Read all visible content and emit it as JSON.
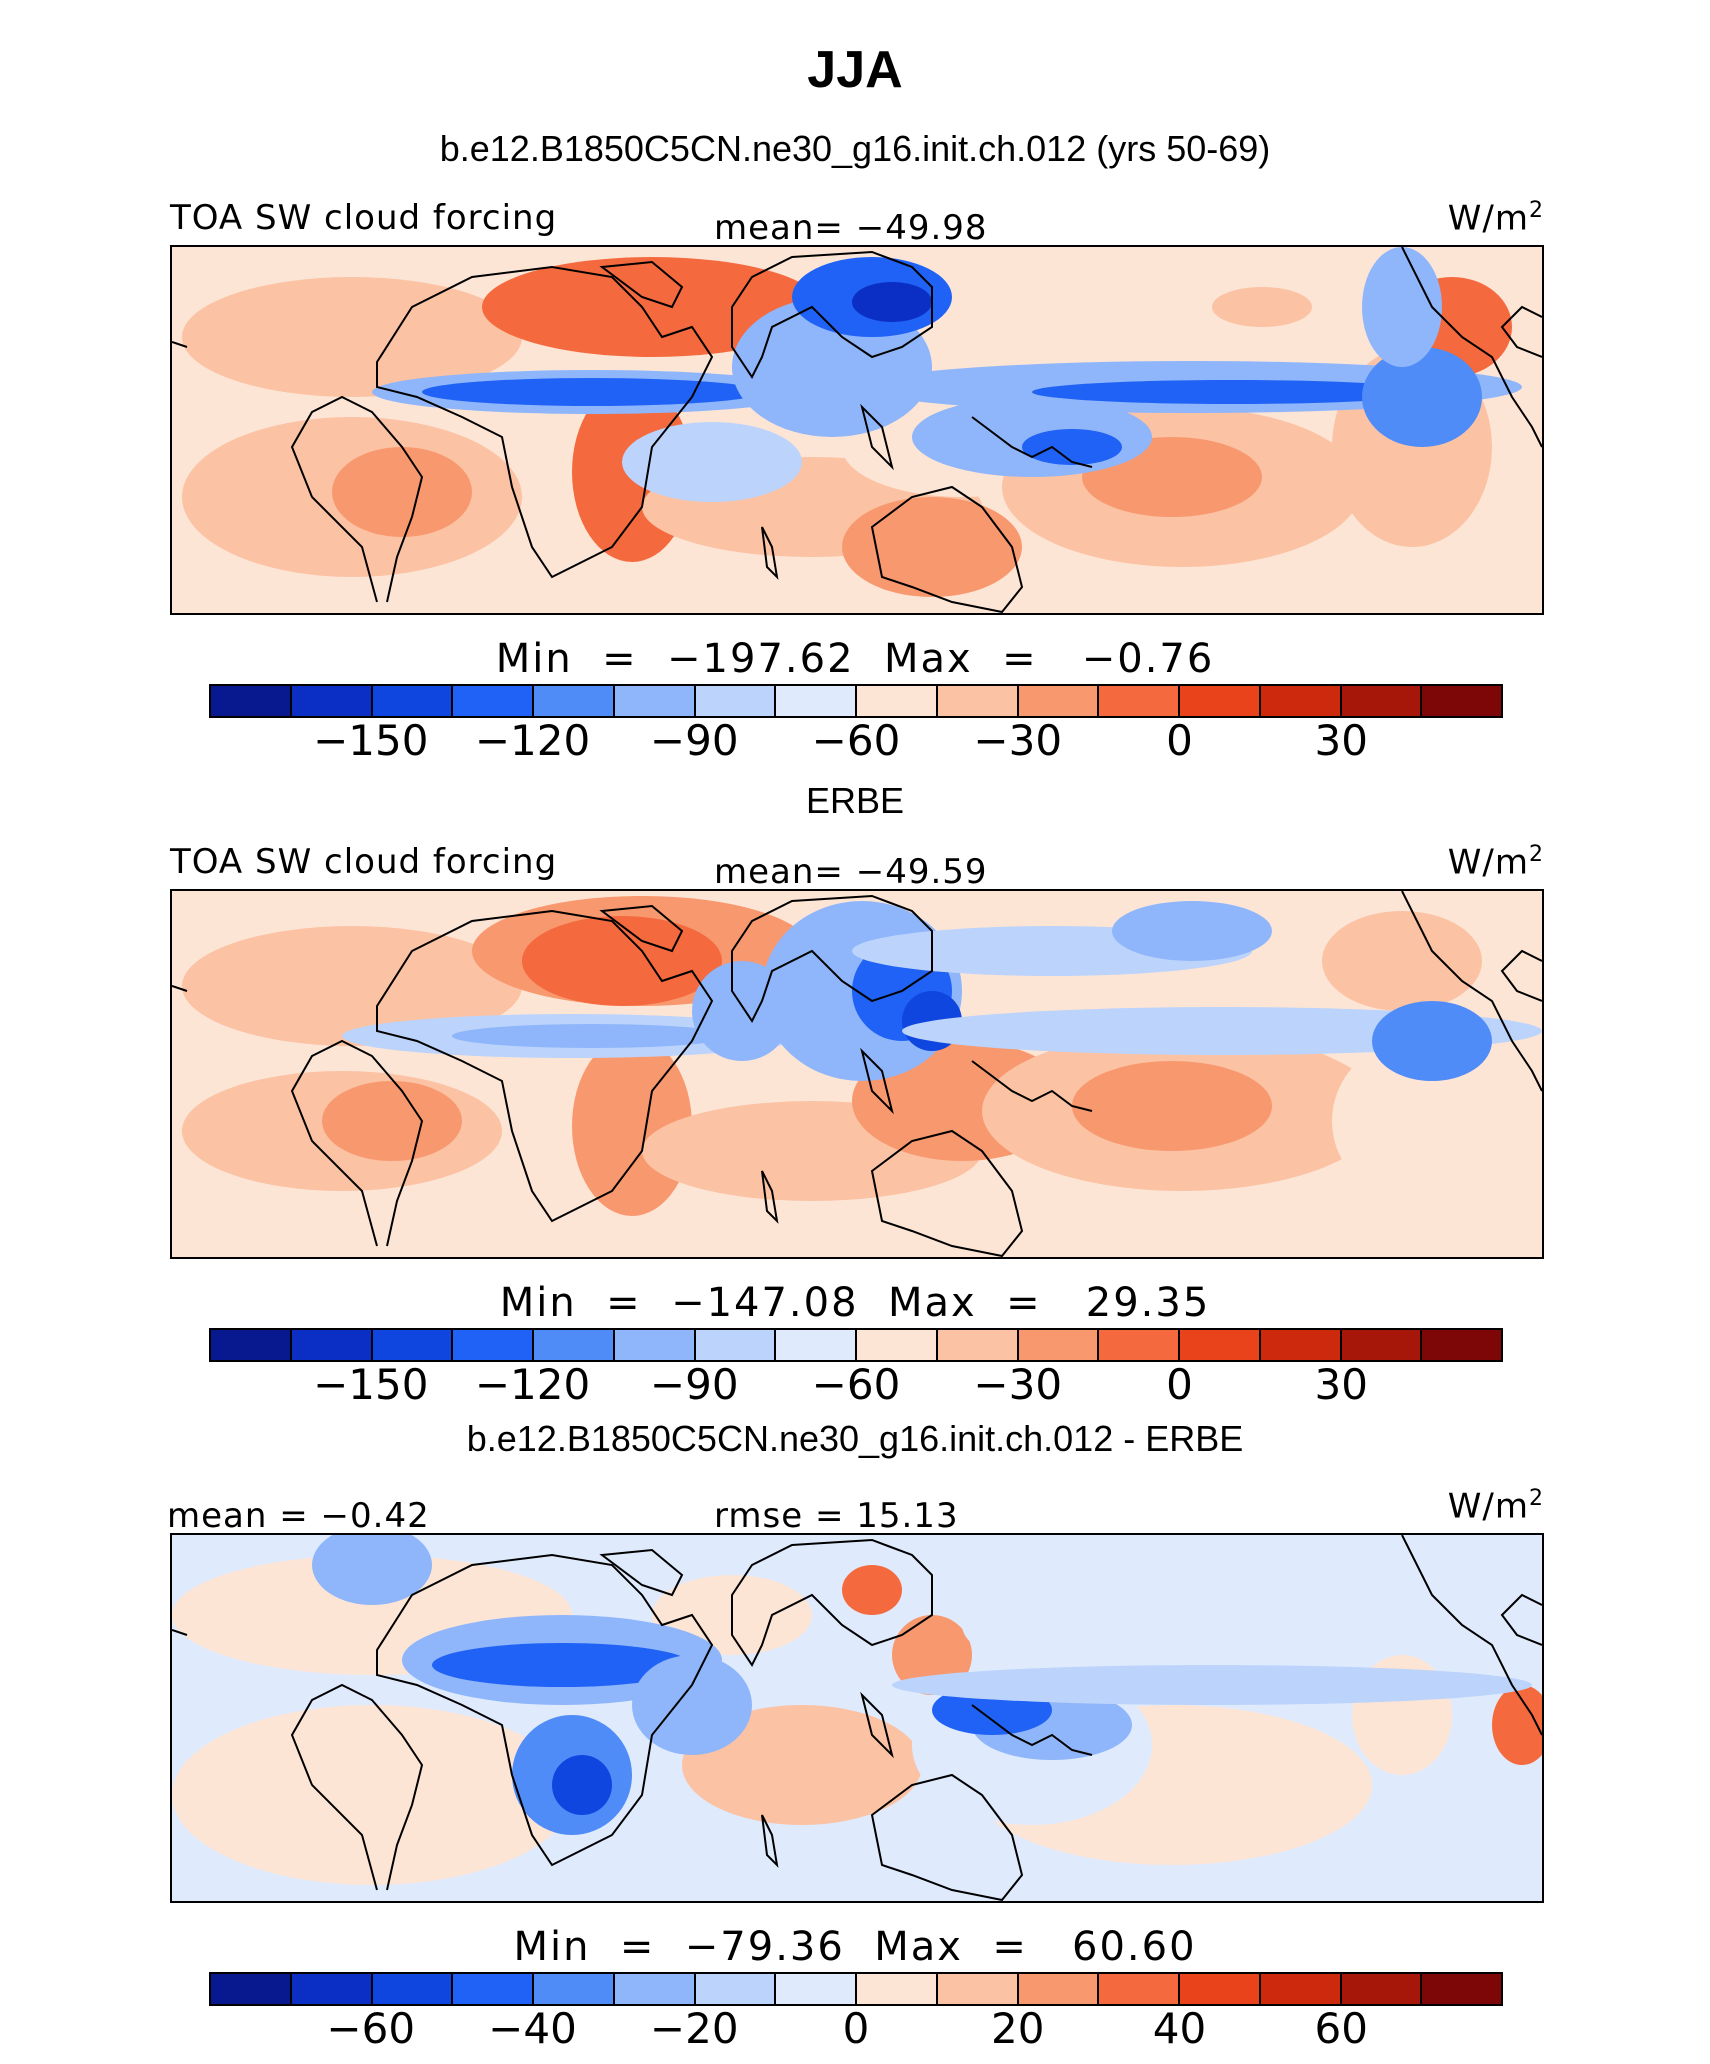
{
  "figure": {
    "title": "JJA",
    "colorbar_colors": [
      "#08188f",
      "#0b2fc4",
      "#0f46e0",
      "#1f62f5",
      "#4f8cf7",
      "#8fb6fa",
      "#bcd3fb",
      "#dfeafd",
      "#fde5d6",
      "#fbc2a3",
      "#f8986e",
      "#f46a3e",
      "#e8431b",
      "#cd2a0d",
      "#a6170a",
      "#7d0606"
    ],
    "coastline_color": "#000000"
  },
  "panels": [
    {
      "title": "b.e12.B1850C5CN.ne30_g16.init.ch.012 (yrs 50-69)",
      "left_label": "TOA SW cloud forcing",
      "center_label": "mean= −49.98",
      "units_label": "W/m",
      "units_sup": "2",
      "minmax_label": "Min  =  −197.62  Max  =   −0.76",
      "colorbar_ticks": [
        "−150",
        "−120",
        "−90",
        "−60",
        "−30",
        "0",
        "30"
      ],
      "field": "model"
    },
    {
      "title": "ERBE",
      "left_label": "TOA SW cloud forcing",
      "center_label": "mean= −49.59",
      "units_label": "W/m",
      "units_sup": "2",
      "minmax_label": "Min  =  −147.08  Max  =   29.35",
      "colorbar_ticks": [
        "−150",
        "−120",
        "−90",
        "−60",
        "−30",
        "0",
        "30"
      ],
      "field": "obs"
    },
    {
      "title": "b.e12.B1850C5CN.ne30_g16.init.ch.012 - ERBE",
      "left_label": "mean =   −0.42",
      "center_label": "rmse =   15.13",
      "units_label": "W/m",
      "units_sup": "2",
      "minmax_label": "Min  =  −79.36  Max  =   60.60",
      "colorbar_ticks": [
        "−60",
        "−40",
        "−20",
        "0",
        "20",
        "40",
        "60"
      ],
      "field": "diff"
    }
  ]
}
